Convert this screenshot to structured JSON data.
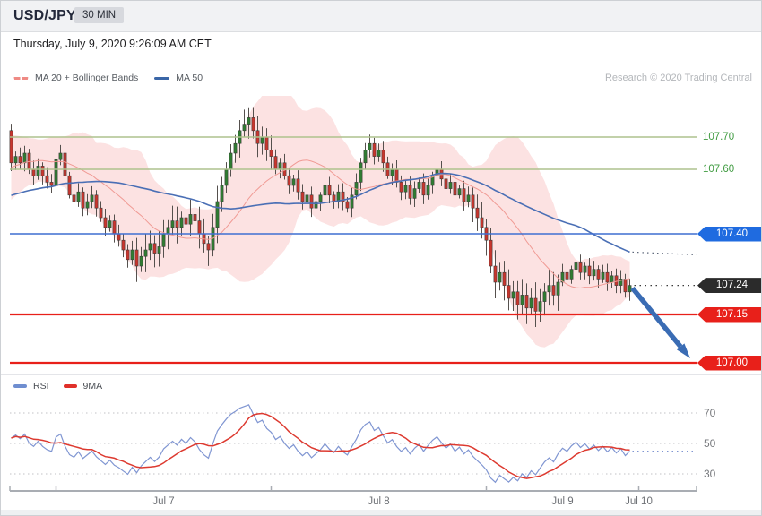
{
  "window": {
    "title": "USD/JPY",
    "timeframe_badge": "30 MIN"
  },
  "header": {
    "datetime": "Thursday, July 9, 2020 9:26:09 AM CET",
    "credit": "Research © 2020 Trading Central"
  },
  "legend_main": {
    "items": [
      {
        "label": "MA 20 + Bollinger Bands",
        "color": "#ef8a84"
      },
      {
        "label": "MA 50",
        "color": "#3a66a7"
      }
    ]
  },
  "legend_rsi": {
    "items": [
      {
        "label": "RSI",
        "color": "#6f8ed0"
      },
      {
        "label": "9MA",
        "color": "#e0302a"
      }
    ]
  },
  "chart_data": {
    "type": "candlestick",
    "symbol": "USD/JPY",
    "interval_minutes": 30,
    "ylim": [
      106.97,
      107.82
    ],
    "grid": false,
    "x_labels": [
      "Jul 7",
      "Jul 8",
      "Jul 9",
      "Jul 10"
    ],
    "day_start_indices": [
      10,
      58,
      106,
      140
    ],
    "last_price": 107.24,
    "levels": [
      {
        "price": 107.7,
        "kind": "resistance",
        "line_color": "#aec28d",
        "label_color": "#3f9b40",
        "tag": false
      },
      {
        "price": 107.6,
        "kind": "resistance",
        "line_color": "#aec28d",
        "label_color": "#3f9b40",
        "tag": false
      },
      {
        "price": 107.4,
        "kind": "pivot",
        "line_color": "#3f6fd1",
        "tag": true,
        "tag_color": "#1f6be0"
      },
      {
        "price": 107.24,
        "kind": "last_price",
        "tag": true,
        "tag_color": "#2b2b2b",
        "leader_dotted": true
      },
      {
        "price": 107.15,
        "kind": "support",
        "line_color": "#e8201a",
        "tag": true,
        "tag_color": "#e8201a"
      },
      {
        "price": 107.0,
        "kind": "target",
        "line_color": "#e8201a",
        "tag": true,
        "tag_color": "#e8201a"
      }
    ],
    "forecast": {
      "direction": "down",
      "from_price": 107.24,
      "target": 107.0,
      "arrow_color": "#3a6cb4"
    },
    "overlays": {
      "ma20_period": 20,
      "ma50_period": 50,
      "bollinger_k": 2,
      "ma20_color": "#f09a94",
      "ma50_color": "#4a6fb5",
      "band_fill": "rgba(246,160,158,0.30)"
    },
    "candles": {
      "up_color": "#2f7d32",
      "down_color": "#c9362e",
      "wick_color": "#55504d",
      "wick_default": 0.028,
      "wick_zones": [
        [
          28,
          47,
          0.05
        ],
        [
          50,
          58,
          0.045
        ],
        [
          103,
          122,
          0.05
        ]
      ],
      "pre_closes": [
        107.45,
        107.43,
        107.46,
        107.44,
        107.42,
        107.45,
        107.47,
        107.44,
        107.46,
        107.48,
        107.45,
        107.43,
        107.46,
        107.48,
        107.46,
        107.44,
        107.47,
        107.45,
        107.48,
        107.46,
        107.44,
        107.46,
        107.49,
        107.47,
        107.45,
        107.48,
        107.5,
        107.48,
        107.46,
        107.49,
        107.5,
        107.52,
        107.54,
        107.53,
        107.55,
        107.57,
        107.56,
        107.58,
        107.6,
        107.59,
        107.61,
        107.64,
        107.61,
        107.65,
        107.62,
        107.66,
        107.63,
        107.67,
        107.64,
        107.72
      ],
      "closes": [
        107.62,
        107.64,
        107.62,
        107.65,
        107.6,
        107.58,
        107.61,
        107.58,
        107.56,
        107.55,
        107.63,
        107.65,
        107.58,
        107.52,
        107.5,
        107.53,
        107.48,
        107.5,
        107.52,
        107.48,
        107.45,
        107.42,
        107.44,
        107.4,
        107.38,
        107.35,
        107.32,
        107.35,
        107.3,
        107.33,
        107.35,
        107.37,
        107.34,
        107.36,
        107.4,
        107.42,
        107.44,
        107.42,
        107.45,
        107.43,
        107.46,
        107.44,
        107.4,
        107.37,
        107.35,
        107.42,
        107.5,
        107.55,
        107.6,
        107.65,
        107.68,
        107.72,
        107.74,
        107.76,
        107.72,
        107.68,
        107.7,
        107.66,
        107.64,
        107.6,
        107.62,
        107.58,
        107.55,
        107.57,
        107.53,
        107.5,
        107.52,
        107.48,
        107.5,
        107.52,
        107.55,
        107.52,
        107.5,
        107.53,
        107.5,
        107.48,
        107.52,
        107.56,
        107.62,
        107.66,
        107.68,
        107.64,
        107.66,
        107.62,
        107.58,
        107.6,
        107.56,
        107.53,
        107.55,
        107.51,
        107.54,
        107.56,
        107.52,
        107.55,
        107.58,
        107.6,
        107.57,
        107.54,
        107.56,
        107.52,
        107.54,
        107.5,
        107.52,
        107.48,
        107.45,
        107.42,
        107.38,
        107.3,
        107.25,
        107.28,
        107.24,
        107.2,
        107.22,
        107.18,
        107.21,
        107.17,
        107.2,
        107.16,
        107.19,
        107.22,
        107.24,
        107.21,
        107.25,
        107.28,
        107.26,
        107.29,
        107.31,
        107.28,
        107.3,
        107.27,
        107.29,
        107.26,
        107.28,
        107.25,
        107.27,
        107.24,
        107.26,
        107.22,
        107.24
      ]
    },
    "rsi": {
      "period": 14,
      "ma_period": 9,
      "gridlines": [
        70,
        50,
        30
      ],
      "line_color": "#8096d2",
      "ma_color": "#dd3a30"
    }
  }
}
